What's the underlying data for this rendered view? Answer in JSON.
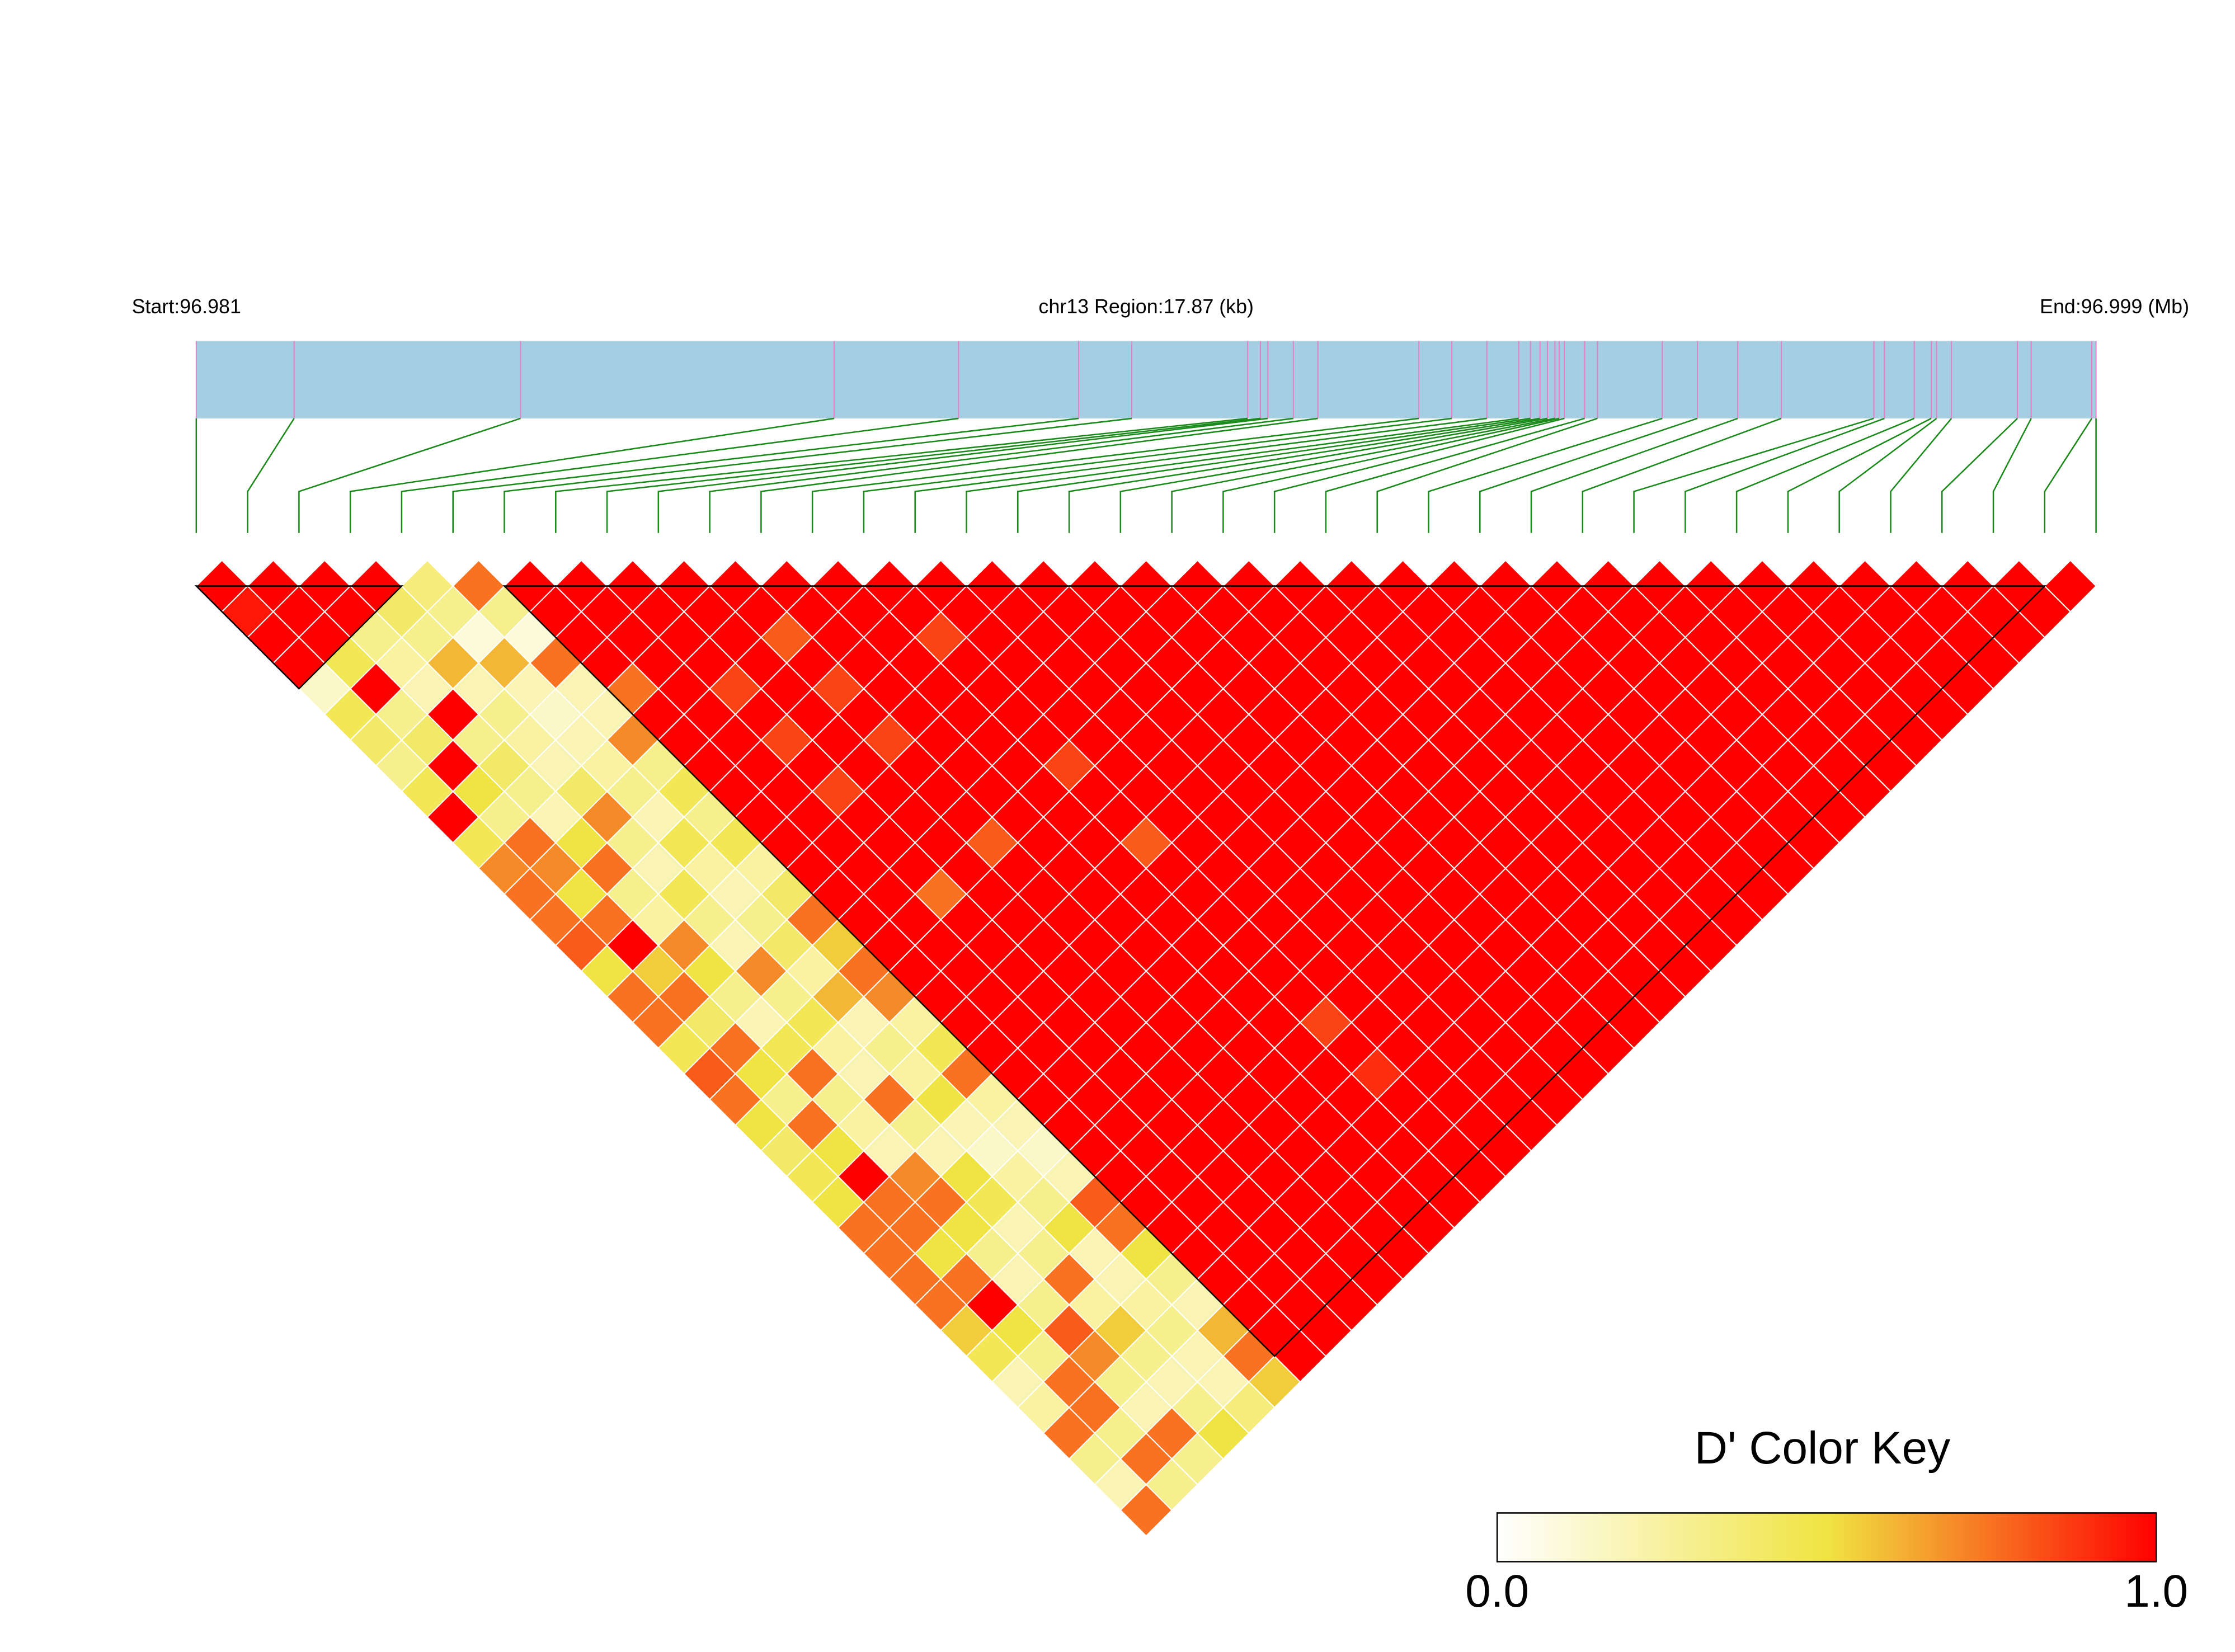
{
  "chart_data": {
    "type": "ld_heatmap",
    "start_label": "Start:96.981",
    "title": "chr13 Region:17.87 (kb)",
    "end_label": "End:96.999 (Mb)",
    "positions": [
      0,
      0.92,
      3.05,
      6.0,
      7.17,
      8.3,
      8.8,
      9.89,
      10.01,
      10.08,
      10.32,
      10.55,
      11.5,
      11.81,
      12.14,
      12.44,
      12.55,
      12.64,
      12.71,
      12.78,
      12.82,
      12.87,
      13.06,
      13.18,
      13.79,
      14.12,
      14.5,
      14.91,
      15.78,
      15.88,
      16.16,
      16.32,
      16.37,
      16.51,
      17.13,
      17.26,
      17.83,
      17.87
    ],
    "dprime": [
      [
        1,
        0.95,
        1,
        1,
        0.15,
        0.45,
        0.4,
        0.3,
        0.45,
        1,
        0.45,
        0.7,
        0.75,
        0.75,
        0.8,
        0.5,
        0.75,
        0.75,
        0.45,
        0.8,
        0.75,
        0.5,
        0.4,
        0.45,
        0.5,
        0.75,
        0.75,
        0.75,
        0.75,
        0.55,
        0.45,
        0.2,
        0.25,
        0.75,
        0.3,
        0.2,
        0.75
      ],
      [
        1,
        1,
        1,
        0.45,
        1,
        0.3,
        0.4,
        1,
        0.5,
        0.3,
        0.75,
        0.7,
        0.5,
        0.75,
        1,
        0.55,
        0.75,
        0.4,
        0.75,
        0.5,
        0.3,
        0.75,
        0.5,
        1,
        0.75,
        0.75,
        0.5,
        0.75,
        1,
        0.5,
        0.3,
        0.75,
        0.75,
        0.3,
        0.75,
        0.3
      ],
      [
        1,
        1,
        0.3,
        0.25,
        0.2,
        1,
        0.3,
        0.4,
        0.3,
        0.2,
        0.5,
        0.75,
        0.3,
        0.25,
        0.7,
        0.5,
        0.3,
        0.2,
        0.45,
        0.75,
        0.3,
        0.25,
        0.2,
        0.7,
        0.75,
        0.5,
        0.3,
        0.2,
        0.3,
        0.8,
        0.7,
        0.3,
        0.2,
        0.75,
        0.3
      ],
      [
        1,
        0.4,
        0.3,
        0.6,
        0.2,
        0.3,
        0.25,
        0.2,
        0.4,
        0.7,
        0.3,
        0.2,
        0.45,
        0.3,
        0.2,
        0.7,
        0.3,
        0.45,
        0.25,
        0.2,
        0.75,
        0.3,
        0.2,
        0.5,
        0.45,
        0.2,
        0.3,
        0.75,
        0.25,
        0.55,
        0.3,
        0.2,
        0.3,
        0.5
      ],
      [
        0.35,
        0.3,
        0.1,
        0.6,
        0.2,
        0.15,
        0.2,
        0.25,
        0.3,
        0.2,
        0.45,
        0.25,
        0.2,
        0.3,
        0.4,
        0.25,
        0.6,
        0.2,
        0.3,
        0.25,
        0.5,
        0.2,
        0.15,
        0.25,
        0.3,
        0.5,
        0.2,
        0.2,
        0.25,
        0.3,
        0.2,
        0.2,
        0.35
      ],
      [
        0.75,
        0.3,
        0.1,
        0.75,
        0.2,
        0.2,
        0.7,
        0.3,
        0.45,
        0.3,
        0.45,
        0.25,
        0.4,
        0.75,
        0.55,
        0.75,
        0.7,
        0.25,
        0.45,
        0.75,
        0.25,
        0.2,
        0.15,
        0.2,
        0.8,
        0.75,
        0.5,
        0.3,
        0.2,
        0.6,
        0.75,
        0.55
      ],
      [
        1,
        1,
        1,
        1,
        0.75,
        1,
        1,
        1,
        1,
        1,
        1,
        1,
        1,
        1,
        1,
        1,
        1,
        1,
        1,
        1,
        1,
        1,
        1,
        1,
        1,
        1,
        1,
        1,
        1,
        1,
        1
      ],
      [
        1,
        1,
        1,
        1,
        1,
        1,
        1,
        1,
        1,
        1,
        1,
        1,
        1,
        1,
        1,
        1,
        1,
        1,
        1,
        1,
        1,
        1,
        1,
        1,
        1,
        1,
        1,
        1,
        1,
        1
      ],
      [
        1,
        1,
        1,
        1,
        0.85,
        1,
        0.85,
        1,
        0.85,
        1,
        1,
        1,
        0.75,
        1,
        1,
        1,
        1,
        1,
        1,
        1,
        1,
        1,
        1,
        1,
        1,
        1,
        1,
        1,
        1
      ],
      [
        1,
        1,
        1,
        1,
        1,
        1,
        1,
        1,
        1,
        1,
        1,
        1,
        1,
        1,
        1,
        1,
        1,
        1,
        1,
        1,
        1,
        1,
        1,
        1,
        1,
        1,
        1,
        1
      ],
      [
        1,
        1,
        0.8,
        1,
        0.85,
        1,
        0.85,
        1,
        1,
        1,
        0.8,
        1,
        1,
        1,
        1,
        1,
        1,
        1,
        1,
        1,
        1,
        1,
        1,
        1,
        1,
        1,
        1
      ],
      [
        1,
        1,
        1,
        1,
        1,
        1,
        1,
        1,
        1,
        1,
        1,
        1,
        1,
        1,
        1,
        1,
        1,
        1,
        1,
        1,
        1,
        1,
        1,
        1,
        1,
        1
      ],
      [
        1,
        1,
        1,
        1,
        1,
        1,
        1,
        1,
        1,
        1,
        1,
        1,
        1,
        1,
        1,
        1,
        1,
        1,
        1,
        1,
        1,
        1,
        1,
        1,
        1
      ],
      [
        1,
        1,
        0.85,
        1,
        1,
        1,
        1,
        0.85,
        1,
        1,
        0.8,
        1,
        1,
        1,
        1,
        1,
        1,
        0.85,
        1,
        0.9,
        1,
        1,
        1,
        1
      ],
      [
        1,
        1,
        1,
        1,
        1,
        1,
        1,
        1,
        1,
        1,
        1,
        1,
        1,
        1,
        1,
        1,
        1,
        1,
        1,
        1,
        1,
        1,
        1
      ],
      [
        1,
        1,
        1,
        1,
        1,
        1,
        1,
        1,
        1,
        1,
        1,
        1,
        1,
        1,
        1,
        1,
        1,
        1,
        1,
        1,
        1,
        1
      ],
      [
        1,
        1,
        1,
        1,
        1,
        1,
        1,
        1,
        1,
        1,
        1,
        1,
        1,
        1,
        1,
        1,
        1,
        1,
        1,
        1,
        1
      ],
      [
        1,
        1,
        1,
        1,
        1,
        1,
        1,
        1,
        1,
        1,
        1,
        1,
        1,
        1,
        1,
        1,
        1,
        1,
        1,
        1
      ],
      [
        1,
        1,
        1,
        1,
        1,
        1,
        1,
        1,
        1,
        1,
        1,
        1,
        1,
        1,
        1,
        1,
        1,
        1,
        1
      ],
      [
        1,
        1,
        1,
        1,
        1,
        1,
        1,
        1,
        1,
        1,
        1,
        1,
        1,
        1,
        1,
        1,
        1,
        1
      ],
      [
        1,
        1,
        1,
        1,
        1,
        1,
        1,
        1,
        1,
        1,
        1,
        1,
        1,
        1,
        1,
        1,
        1
      ],
      [
        1,
        1,
        1,
        1,
        1,
        1,
        1,
        1,
        1,
        1,
        1,
        1,
        1,
        1,
        1,
        1
      ],
      [
        1,
        1,
        1,
        1,
        1,
        1,
        1,
        1,
        1,
        1,
        1,
        1,
        1,
        1,
        1
      ],
      [
        1,
        1,
        1,
        1,
        1,
        1,
        1,
        1,
        1,
        1,
        1,
        1,
        1,
        1
      ],
      [
        1,
        1,
        1,
        1,
        1,
        1,
        1,
        1,
        1,
        1,
        1,
        1,
        1
      ],
      [
        1,
        1,
        1,
        1,
        1,
        1,
        1,
        1,
        1,
        1,
        1,
        1
      ],
      [
        1,
        1,
        1,
        1,
        1,
        1,
        1,
        1,
        1,
        1,
        1
      ],
      [
        1,
        1,
        1,
        1,
        1,
        1,
        1,
        1,
        1,
        1
      ],
      [
        1,
        1,
        1,
        1,
        1,
        1,
        1,
        1,
        1
      ],
      [
        1,
        1,
        1,
        1,
        1,
        1,
        1,
        1
      ],
      [
        1,
        1,
        1,
        1,
        1,
        1,
        1
      ],
      [
        1,
        1,
        1,
        1,
        1,
        1
      ],
      [
        1,
        1,
        1,
        1,
        1
      ],
      [
        1,
        1,
        1,
        1
      ],
      [
        1,
        1,
        1
      ],
      [
        1,
        1
      ],
      [
        1
      ]
    ],
    "blocks": [
      [
        1,
        5
      ],
      [
        7,
        37
      ]
    ],
    "color_key": {
      "title": "D' Color Key",
      "colors": [
        "#ffffff",
        "#f0e442",
        "#ff0000"
      ],
      "lim": [
        0,
        1
      ],
      "ticks": [
        {
          "value": 0,
          "label": "0.0"
        },
        {
          "value": 1,
          "label": "1.0"
        }
      ]
    }
  }
}
